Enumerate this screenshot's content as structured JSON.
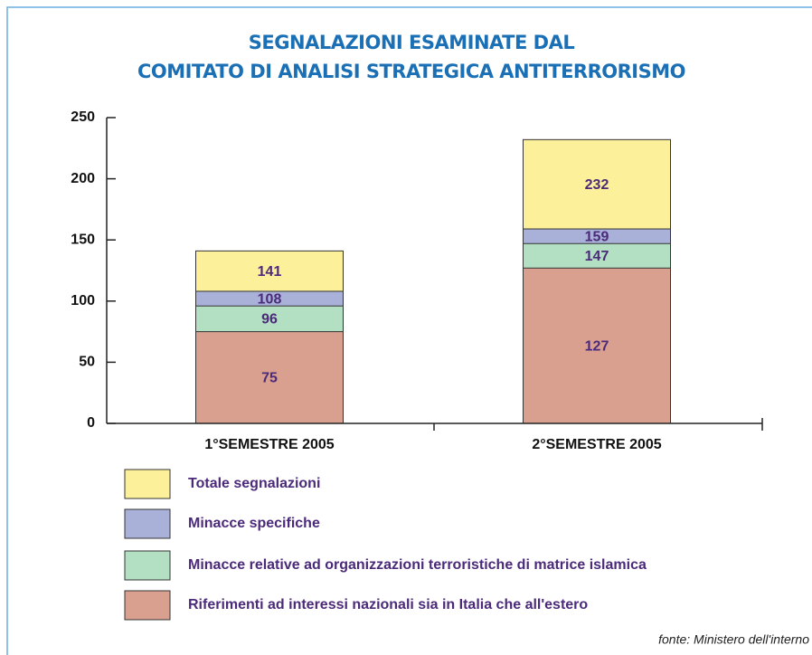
{
  "chart_data": {
    "type": "bar",
    "barmode": "overlay",
    "title": [
      "SEGNALAZIONI ESAMINATE DAL",
      "COMITATO DI ANALISI STRATEGICA ANTITERRORISMO"
    ],
    "categories": [
      "1°SEMESTRE 2005",
      "2°SEMESTRE 2005"
    ],
    "series": [
      {
        "name": "Totale segnalazioni",
        "color": "#fdf09a",
        "values": [
          141,
          232
        ]
      },
      {
        "name": "Minacce specifiche",
        "color": "#a9b1d8",
        "values": [
          108,
          159
        ]
      },
      {
        "name": "Minacce relative ad organizzazioni terroristiche di matrice islamica",
        "color": "#b3e0c3",
        "values": [
          96,
          147
        ]
      },
      {
        "name": "Riferimenti ad interessi nazionali sia in Italia che all'estero",
        "color": "#d9a08f",
        "values": [
          75,
          127
        ]
      }
    ],
    "ylim": [
      0,
      250
    ],
    "yticks": [
      0,
      50,
      100,
      150,
      200,
      250
    ],
    "source": "fonte: Ministero dell'interno"
  }
}
